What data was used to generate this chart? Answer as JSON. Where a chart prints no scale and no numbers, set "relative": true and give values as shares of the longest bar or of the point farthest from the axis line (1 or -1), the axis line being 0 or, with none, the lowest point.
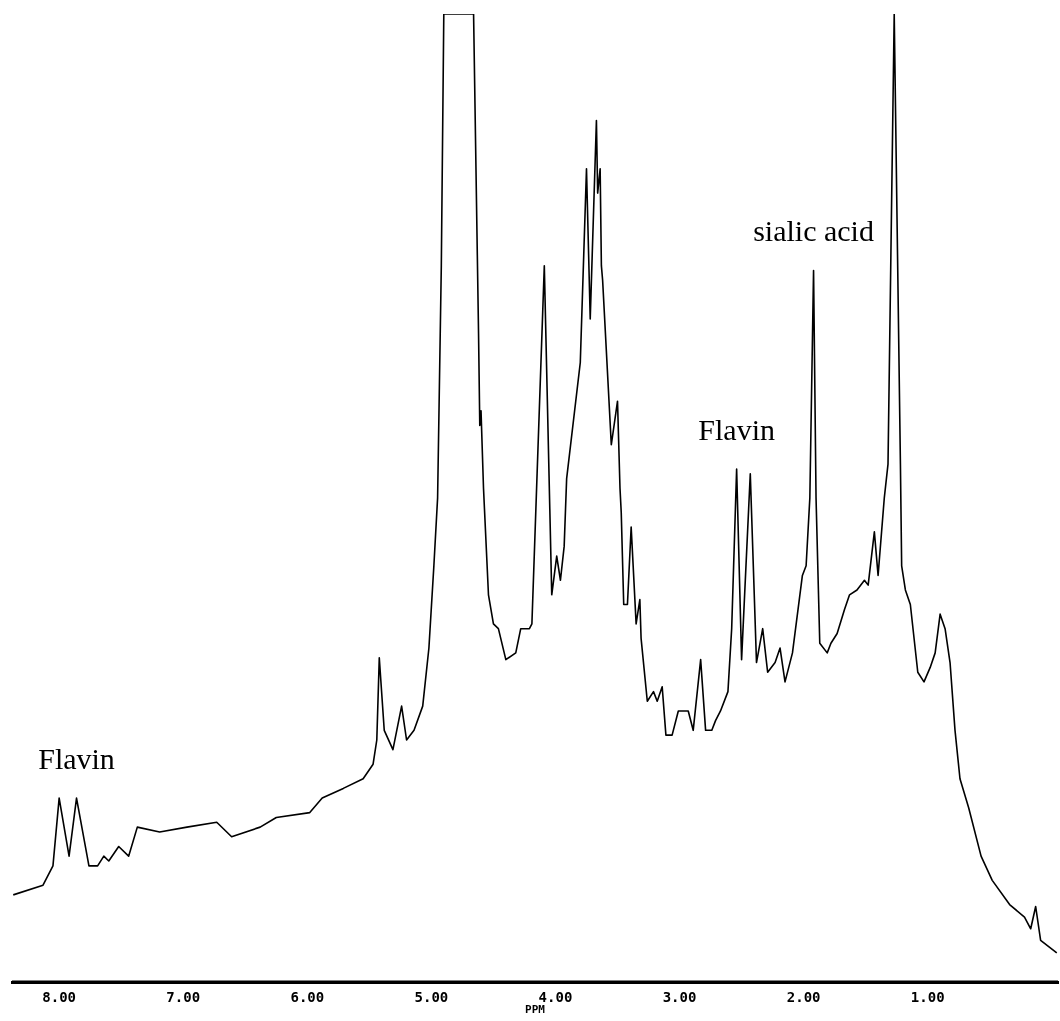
{
  "chart_data": {
    "type": "line",
    "relative": true,
    "xlabel": "PPM",
    "xlim": [
      8.38,
      -0.05
    ],
    "xticks": [
      {
        "value": 8,
        "label": "8.00"
      },
      {
        "value": 7,
        "label": "7.00"
      },
      {
        "value": 6,
        "label": "6.00"
      },
      {
        "value": 5,
        "label": "5.00"
      },
      {
        "value": 4,
        "label": "4.00"
      },
      {
        "value": 3,
        "label": "3.00"
      },
      {
        "value": 2,
        "label": "2.00"
      },
      {
        "value": 1,
        "label": "1.00"
      }
    ],
    "grid": false,
    "legend": false,
    "marker": "none",
    "line_style": "solid",
    "tick_labels": "x",
    "annotations": [
      {
        "text": "Flavin",
        "x": 7.86,
        "y": 0.19
      },
      {
        "text": "Flavin",
        "x": 2.54,
        "y": 0.53
      },
      {
        "text": "sialic acid",
        "x": 1.92,
        "y": 0.735
      }
    ],
    "series": [
      {
        "color": "#000000",
        "x": [
          8.37,
          8.13,
          8.05,
          8.0,
          7.92,
          7.86,
          7.76,
          7.69,
          7.64,
          7.6,
          7.52,
          7.44,
          7.37,
          7.19,
          6.97,
          6.73,
          6.61,
          6.38,
          6.25,
          5.98,
          5.88,
          5.71,
          5.55,
          5.47,
          5.44,
          5.42,
          5.38,
          5.31,
          5.24,
          5.2,
          5.14,
          5.07,
          5.02,
          4.98,
          4.95,
          4.92,
          4.9,
          4.66,
          4.62,
          4.61,
          4.6,
          4.58,
          4.54,
          4.5,
          4.46,
          4.4,
          4.32,
          4.28,
          4.21,
          4.19,
          4.09,
          4.03,
          3.99,
          3.96,
          3.93,
          3.91,
          3.8,
          3.75,
          3.72,
          3.67,
          3.66,
          3.64,
          3.63,
          3.62,
          3.55,
          3.5,
          3.48,
          3.47,
          3.45,
          3.42,
          3.39,
          3.35,
          3.32,
          3.31,
          3.26,
          3.21,
          3.18,
          3.14,
          3.11,
          3.06,
          3.01,
          2.93,
          2.89,
          2.83,
          2.79,
          2.74,
          2.71,
          2.67,
          2.61,
          2.58,
          2.54,
          2.5,
          2.43,
          2.38,
          2.33,
          2.29,
          2.23,
          2.19,
          2.15,
          2.09,
          2.01,
          1.98,
          1.95,
          1.92,
          1.9,
          1.87,
          1.81,
          1.78,
          1.73,
          1.67,
          1.63,
          1.57,
          1.51,
          1.48,
          1.43,
          1.4,
          1.35,
          1.32,
          1.27,
          1.22,
          1.21,
          1.18,
          1.14,
          1.08,
          1.03,
          0.98,
          0.94,
          0.9,
          0.86,
          0.82,
          0.78,
          0.74,
          0.67,
          0.57,
          0.48,
          0.34,
          0.22,
          0.17,
          0.13,
          0.09,
          -0.04
        ],
        "values": [
          0.09,
          0.1,
          0.12,
          0.19,
          0.13,
          0.19,
          0.12,
          0.12,
          0.13,
          0.125,
          0.14,
          0.13,
          0.16,
          0.155,
          0.16,
          0.165,
          0.15,
          0.16,
          0.17,
          0.175,
          0.19,
          0.2,
          0.21,
          0.225,
          0.25,
          0.335,
          0.26,
          0.24,
          0.285,
          0.25,
          0.26,
          0.285,
          0.345,
          0.43,
          0.5,
          0.74,
          1,
          1,
          0.67,
          0.575,
          0.59,
          0.51,
          0.4,
          0.37,
          0.365,
          0.333,
          0.34,
          0.365,
          0.365,
          0.37,
          0.74,
          0.4,
          0.44,
          0.415,
          0.45,
          0.52,
          0.64,
          0.84,
          0.685,
          0.89,
          0.815,
          0.84,
          0.74,
          0.725,
          0.555,
          0.6,
          0.51,
          0.485,
          0.39,
          0.39,
          0.47,
          0.37,
          0.395,
          0.355,
          0.29,
          0.3,
          0.29,
          0.305,
          0.255,
          0.255,
          0.28,
          0.28,
          0.26,
          0.333,
          0.26,
          0.26,
          0.27,
          0.28,
          0.3,
          0.365,
          0.53,
          0.333,
          0.525,
          0.33,
          0.365,
          0.32,
          0.33,
          0.345,
          0.31,
          0.34,
          0.42,
          0.43,
          0.5,
          0.735,
          0.5,
          0.35,
          0.34,
          0.35,
          0.36,
          0.385,
          0.4,
          0.405,
          0.415,
          0.41,
          0.465,
          0.42,
          0.5,
          0.535,
          1,
          0.535,
          0.43,
          0.405,
          0.39,
          0.32,
          0.31,
          0.325,
          0.34,
          0.38,
          0.365,
          0.33,
          0.26,
          0.21,
          0.18,
          0.13,
          0.105,
          0.08,
          0.067,
          0.055,
          0.078,
          0.043,
          0.03
        ]
      }
    ]
  }
}
